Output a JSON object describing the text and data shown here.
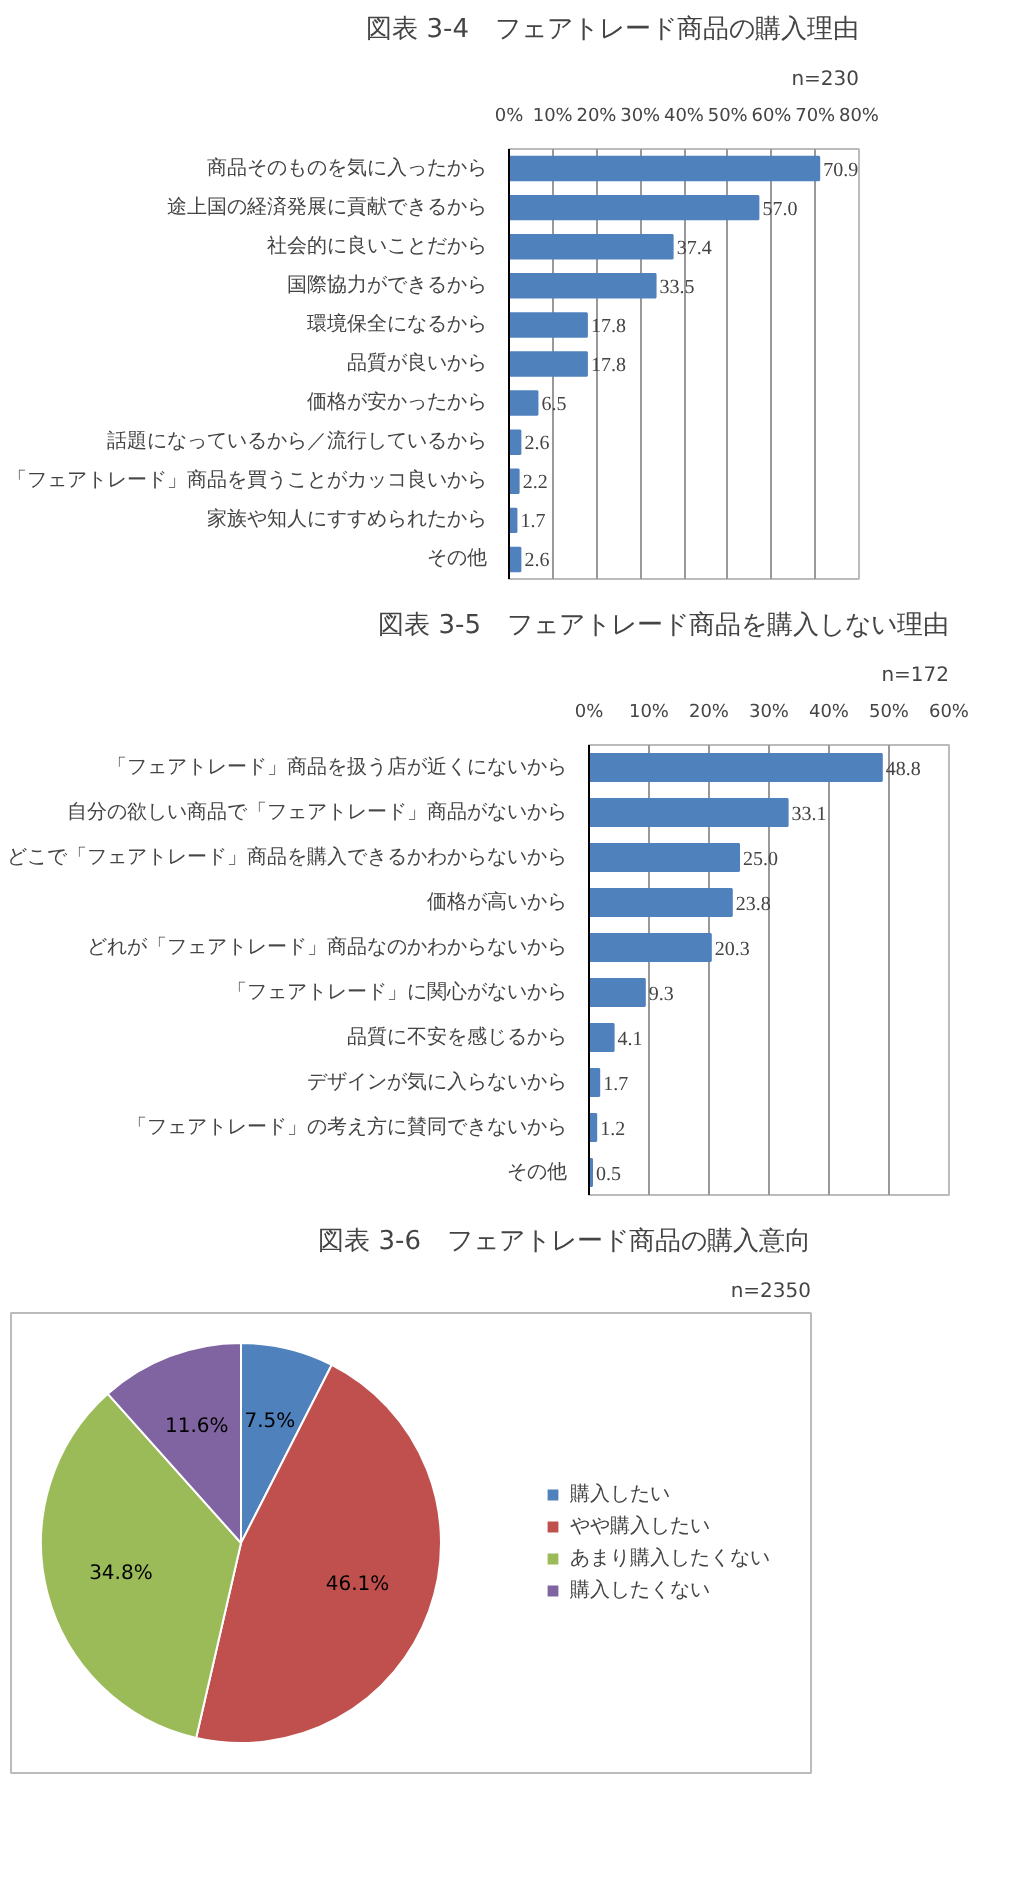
{
  "chart_data": [
    {
      "type": "bar",
      "orientation": "horizontal",
      "title": "図表 3-4　フェアトレード商品の購入理由",
      "annotations": [
        "n=230"
      ],
      "categories": [
        "商品そのものを気に入ったから",
        "途上国の経済発展に貢献できるから",
        "社会的に良いことだから",
        "国際協力ができるから",
        "環境保全になるから",
        "品質が良いから",
        "価格が安かったから",
        "話題になっているから／流行しているから",
        "「フェアトレード」商品を買うことがカッコ良いから",
        "家族や知人にすすめられたから",
        "その他"
      ],
      "values": [
        70.9,
        57.0,
        37.4,
        33.5,
        17.8,
        17.8,
        6.5,
        2.6,
        2.2,
        1.7,
        2.6
      ],
      "value_labels": [
        "70.9",
        "57.0",
        "37.4",
        "33.5",
        "17.8",
        "17.8",
        "6.5",
        "2.6",
        "2.2",
        "1.7",
        "2.6"
      ],
      "color": "#4f81bd",
      "xlim": [
        0,
        80
      ],
      "xticks": [
        {
          "value": 0,
          "label": "0%"
        },
        {
          "value": 10,
          "label": "10%"
        },
        {
          "value": 20,
          "label": "20%"
        },
        {
          "value": 30,
          "label": "30%"
        },
        {
          "value": 40,
          "label": "40%"
        },
        {
          "value": 50,
          "label": "50%"
        },
        {
          "value": 60,
          "label": "60%"
        },
        {
          "value": 70,
          "label": "70%"
        },
        {
          "value": 80,
          "label": "80%"
        }
      ],
      "grid": "x"
    },
    {
      "type": "bar",
      "orientation": "horizontal",
      "title": "図表 3-5　フェアトレード商品を購入しない理由",
      "annotations": [
        "n=172"
      ],
      "categories": [
        "「フェアトレード」商品を扱う店が近くにないから",
        "自分の欲しい商品で「フェアトレード」商品がないから",
        "どこで「フェアトレード」商品を購入できるかわからないから",
        "価格が高いから",
        "どれが「フェアトレード」商品なのかわからないから",
        "「フェアトレード」に関心がないから",
        "品質に不安を感じるから",
        "デザインが気に入らないから",
        "「フェアトレード」の考え方に賛同できないから",
        "その他"
      ],
      "values": [
        48.8,
        33.1,
        25.0,
        23.8,
        20.3,
        9.3,
        4.1,
        1.7,
        1.2,
        0.5
      ],
      "value_labels": [
        "48.8",
        "33.1",
        "25.0",
        "23.8",
        "20.3",
        "9.3",
        "4.1",
        "1.7",
        "1.2",
        "0.5"
      ],
      "color": "#4f81bd",
      "xlim": [
        0,
        60
      ],
      "xticks": [
        {
          "value": 0,
          "label": "0%"
        },
        {
          "value": 10,
          "label": "10%"
        },
        {
          "value": 20,
          "label": "20%"
        },
        {
          "value": 30,
          "label": "30%"
        },
        {
          "value": 40,
          "label": "40%"
        },
        {
          "value": 50,
          "label": "50%"
        },
        {
          "value": 60,
          "label": "60%"
        }
      ],
      "grid": "x"
    },
    {
      "type": "pie",
      "title": "図表 3-6　フェアトレード商品の購入意向",
      "annotations": [
        "n=2350"
      ],
      "categories": [
        "購入したい",
        "やや購入したい",
        "あまり購入したくない",
        "購入したくない"
      ],
      "values": [
        7.5,
        46.1,
        34.8,
        11.6
      ],
      "value_labels": [
        "7.5%",
        "46.1%",
        "34.8%",
        "11.6%"
      ],
      "colors": [
        "#4f81bd",
        "#c0504d",
        "#9bbb59",
        "#8064a2"
      ],
      "legend": "right"
    }
  ]
}
